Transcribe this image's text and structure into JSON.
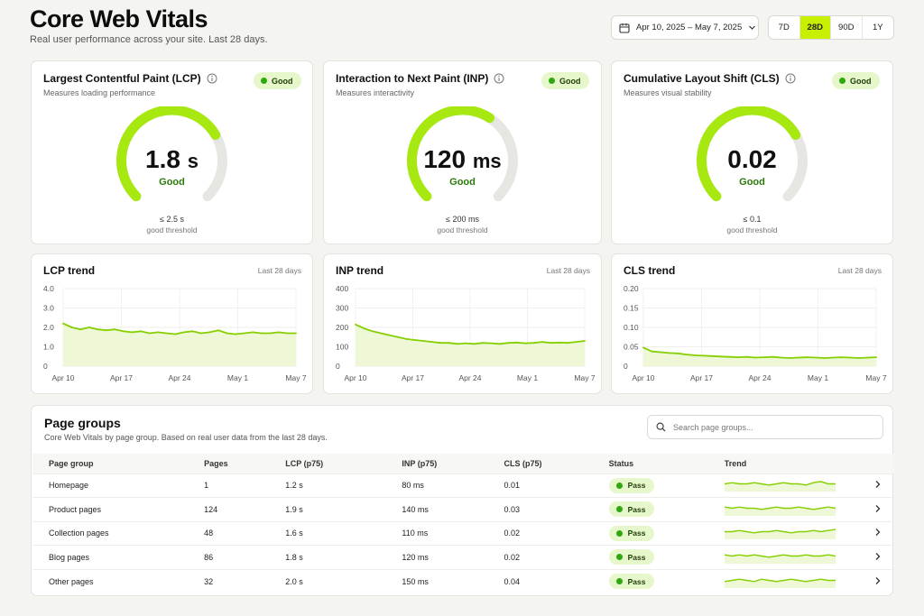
{
  "header": {
    "title": "Core Web Vitals",
    "subtitle": "Real user performance across your site. Last 28 days."
  },
  "date_range": {
    "label": "Apr 10, 2025 – May 7, 2025"
  },
  "periods": [
    {
      "label": "7D",
      "active": false
    },
    {
      "label": "28D",
      "active": true
    },
    {
      "label": "90D",
      "active": false
    },
    {
      "label": "1Y",
      "active": false
    }
  ],
  "colors": {
    "accent": "#c7f000",
    "gauge_good": "#a6e810",
    "gauge_track": "#e6e6e3",
    "trend_line": "#86cf00",
    "trend_fill": "#eef8d6",
    "pass_dot": "#2ea80d"
  },
  "vitals": [
    {
      "title": "Largest Contentful Paint (LCP)",
      "subtitle": "Measures loading performance",
      "badge": "Good",
      "value": "1.8",
      "unit": "s",
      "status": "Good",
      "threshold": "≤ 2.5 s",
      "threshold_label": "good threshold",
      "fraction": 0.72
    },
    {
      "title": "Interaction to Next Paint (INP)",
      "subtitle": "Measures interactivity",
      "badge": "Good",
      "value": "120",
      "unit": "ms",
      "status": "Good",
      "threshold": "≤ 200 ms",
      "threshold_label": "good threshold",
      "fraction": 0.62
    },
    {
      "title": "Cumulative Layout Shift (CLS)",
      "subtitle": "Measures visual stability",
      "badge": "Good",
      "value": "0.02",
      "unit": "",
      "status": "Good",
      "threshold": "≤ 0.1",
      "threshold_label": "good threshold",
      "fraction": 0.72
    }
  ],
  "chart_data": [
    {
      "type": "area",
      "title": "LCP trend",
      "period": "Last 28 days",
      "ylim": [
        0,
        4.0
      ],
      "yticks": [
        "4.0",
        "3.0",
        "2.0",
        "1.0",
        "0"
      ],
      "xticks": [
        "Apr 10",
        "Apr 17",
        "Apr 24",
        "May 1",
        "May 7"
      ],
      "values": [
        2.2,
        2.0,
        1.9,
        2.0,
        1.9,
        1.85,
        1.9,
        1.8,
        1.75,
        1.8,
        1.7,
        1.75,
        1.7,
        1.65,
        1.75,
        1.8,
        1.7,
        1.75,
        1.85,
        1.7,
        1.65,
        1.7,
        1.75,
        1.7,
        1.7,
        1.75,
        1.7,
        1.7
      ]
    },
    {
      "type": "area",
      "title": "INP trend",
      "period": "Last 28 days",
      "ylim": [
        0,
        400
      ],
      "yticks": [
        "400",
        "300",
        "200",
        "100",
        "0"
      ],
      "xticks": [
        "Apr 10",
        "Apr 17",
        "Apr 24",
        "May 1",
        "May 7"
      ],
      "values": [
        215,
        195,
        180,
        170,
        160,
        150,
        140,
        135,
        130,
        125,
        120,
        120,
        115,
        118,
        115,
        120,
        118,
        115,
        120,
        122,
        118,
        120,
        125,
        120,
        122,
        120,
        125,
        130
      ]
    },
    {
      "type": "area",
      "title": "CLS trend",
      "period": "Last 28 days",
      "ylim": [
        0,
        0.2
      ],
      "yticks": [
        "0.20",
        "0.15",
        "0.10",
        "0.05",
        "0"
      ],
      "xticks": [
        "Apr 10",
        "Apr 17",
        "Apr 24",
        "May 1",
        "May 7"
      ],
      "values": [
        0.048,
        0.038,
        0.036,
        0.034,
        0.033,
        0.03,
        0.028,
        0.027,
        0.026,
        0.025,
        0.024,
        0.023,
        0.024,
        0.022,
        0.023,
        0.024,
        0.022,
        0.021,
        0.022,
        0.023,
        0.022,
        0.021,
        0.022,
        0.023,
        0.022,
        0.021,
        0.022,
        0.023
      ]
    }
  ],
  "page_groups": {
    "title": "Page groups",
    "subtitle": "Core Web Vitals by page group. Based on real user data from the last 28 days.",
    "search_placeholder": "Search page groups...",
    "columns": [
      "Page group",
      "Pages",
      "LCP (p75)",
      "INP (p75)",
      "CLS (p75)",
      "Status",
      "Trend"
    ],
    "rows": [
      {
        "name": "Homepage",
        "pages": "1",
        "lcp": "1.2 s",
        "inp": "80 ms",
        "cls": "0.01",
        "status": "Pass",
        "spark": [
          5,
          6,
          5,
          5,
          6,
          5,
          4,
          5,
          6,
          5,
          5,
          4,
          6,
          7,
          5,
          5
        ]
      },
      {
        "name": "Product pages",
        "pages": "124",
        "lcp": "1.9 s",
        "inp": "140 ms",
        "cls": "0.03",
        "status": "Pass",
        "spark": [
          6,
          5,
          6,
          5,
          5,
          4,
          5,
          6,
          5,
          5,
          6,
          5,
          4,
          5,
          6,
          5
        ]
      },
      {
        "name": "Collection pages",
        "pages": "48",
        "lcp": "1.6 s",
        "inp": "110 ms",
        "cls": "0.02",
        "status": "Pass",
        "spark": [
          5,
          5,
          6,
          5,
          4,
          5,
          5,
          6,
          5,
          4,
          5,
          5,
          6,
          5,
          6,
          7
        ]
      },
      {
        "name": "Blog pages",
        "pages": "86",
        "lcp": "1.8 s",
        "inp": "120 ms",
        "cls": "0.02",
        "status": "Pass",
        "spark": [
          6,
          5,
          6,
          5,
          6,
          5,
          4,
          5,
          6,
          5,
          5,
          6,
          5,
          5,
          6,
          5
        ]
      },
      {
        "name": "Other pages",
        "pages": "32",
        "lcp": "2.0 s",
        "inp": "150 ms",
        "cls": "0.04",
        "status": "Pass",
        "spark": [
          4,
          5,
          6,
          5,
          4,
          6,
          5,
          4,
          5,
          6,
          5,
          4,
          5,
          6,
          5,
          5
        ]
      }
    ]
  }
}
